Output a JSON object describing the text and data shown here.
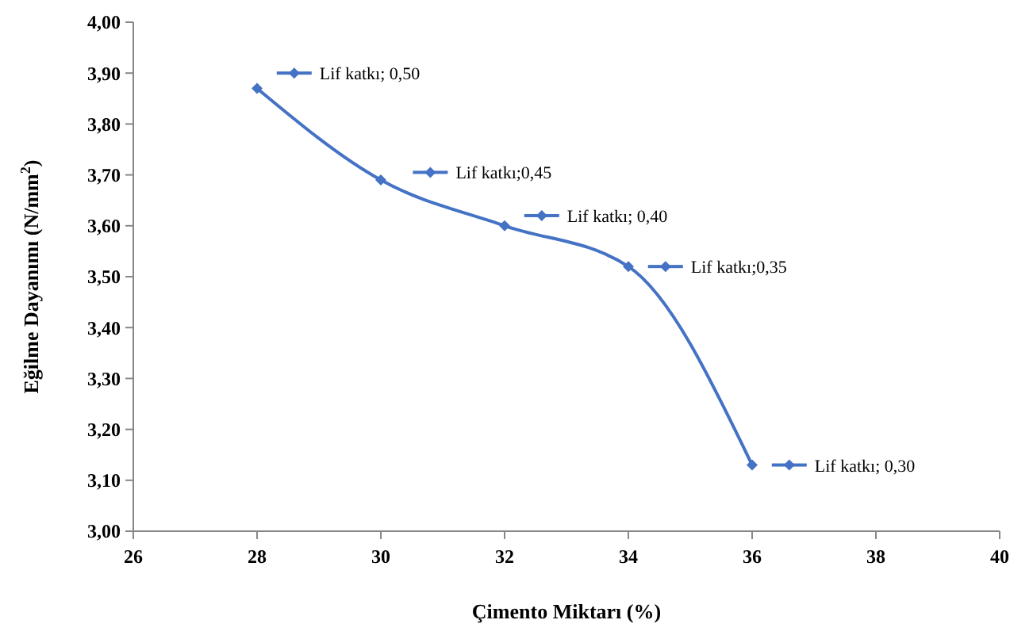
{
  "chart_data": {
    "type": "line",
    "xlabel": "Çimento Miktarı (%)",
    "ylabel": "Eğilme Dayanımı (N/mm$^{2}$)",
    "x": [
      28,
      30,
      32,
      34,
      36
    ],
    "series": [
      {
        "color": "#4472c4",
        "values": [
          3.87,
          3.69,
          3.6,
          3.52,
          3.13
        ]
      }
    ],
    "xlim": [
      26,
      40
    ],
    "xticks": [
      26,
      28,
      30,
      32,
      34,
      36,
      38,
      40
    ],
    "ylim": [
      3,
      4
    ],
    "yticks": [
      {
        "value": 3,
        "label": "3,00"
      },
      {
        "value": 3.1,
        "label": "3,10"
      },
      {
        "value": 3.2,
        "label": "3,20"
      },
      {
        "value": 3.3,
        "label": "3,30"
      },
      {
        "value": 3.4,
        "label": "3,40"
      },
      {
        "value": 3.5,
        "label": "3,50"
      },
      {
        "value": 3.6,
        "label": "3,60"
      },
      {
        "value": 3.7,
        "label": "3,70"
      },
      {
        "value": 3.8,
        "label": "3,80"
      },
      {
        "value": 3.9,
        "label": "3,90"
      },
      {
        "value": 4,
        "label": "4,00"
      }
    ],
    "marker": "diamond",
    "line_style": "solid",
    "grid": false,
    "annotations": [
      {
        "text": "Lif katkı; 0,50",
        "x": 28.6,
        "y": 3.9
      },
      {
        "text": "Lif katkı;0,45",
        "x": 30.8,
        "y": 3.705
      },
      {
        "text": "Lif katkı; 0,40",
        "x": 32.6,
        "y": 3.62
      },
      {
        "text": "Lif katkı;0,35",
        "x": 34.6,
        "y": 3.52
      },
      {
        "text": "Lif katkı; 0,30",
        "x": 36.6,
        "y": 3.13
      }
    ]
  }
}
